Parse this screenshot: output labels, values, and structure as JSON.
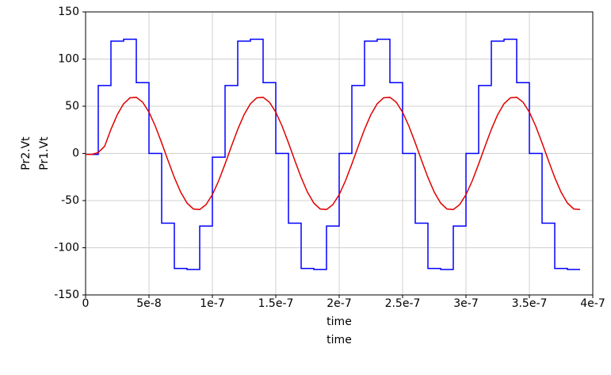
{
  "chart_data": {
    "type": "line",
    "xlim": [
      0,
      4e-07
    ],
    "xticks": [
      0,
      5e-08,
      1e-07,
      1.5e-07,
      2e-07,
      2.5e-07,
      3e-07,
      3.5e-07,
      4e-07
    ],
    "ylim": [
      -150,
      150
    ],
    "yticks": [
      -150,
      -100,
      -50,
      0,
      50,
      100,
      150
    ],
    "grid": true,
    "series": [
      {
        "name": "Pr1.Vt",
        "color": "#0000ff",
        "x_label": "time",
        "x": [
          0,
          1e-08,
          1e-08,
          2e-08,
          2e-08,
          3e-08,
          3e-08,
          4e-08,
          4e-08,
          5e-08,
          5e-08,
          6e-08,
          6e-08,
          7e-08,
          7e-08,
          8e-08,
          8e-08,
          9e-08,
          9e-08,
          1e-07,
          1e-07,
          1.1e-07,
          1.1e-07,
          1.2e-07,
          1.2e-07,
          1.3e-07,
          1.3e-07,
          1.4e-07,
          1.4e-07,
          1.5e-07,
          1.5e-07,
          1.6e-07,
          1.6e-07,
          1.7e-07,
          1.7e-07,
          1.8e-07,
          1.8e-07,
          1.9e-07,
          1.9e-07,
          2e-07,
          2e-07,
          2.1e-07,
          2.1e-07,
          2.2e-07,
          2.2e-07,
          2.3e-07,
          2.3e-07,
          2.4e-07,
          2.4e-07,
          2.5e-07,
          2.5e-07,
          2.6e-07,
          2.6e-07,
          2.7e-07,
          2.7e-07,
          2.8e-07,
          2.8e-07,
          2.9e-07,
          2.9e-07,
          3e-07,
          3e-07,
          3.1e-07,
          3.1e-07,
          3.2e-07,
          3.2e-07,
          3.3e-07,
          3.3e-07,
          3.4e-07,
          3.4e-07,
          3.5e-07,
          3.5e-07,
          3.6e-07,
          3.6e-07,
          3.7e-07,
          3.7e-07,
          3.8e-07,
          3.8e-07,
          3.9e-07
        ],
        "values": [
          -1,
          -1,
          72,
          72,
          119,
          119,
          121,
          121,
          75,
          75,
          0,
          0,
          -74,
          -74,
          -122,
          -122,
          -123,
          -123,
          -77,
          -77,
          -4,
          -4,
          72,
          72,
          119,
          119,
          121,
          121,
          75,
          75,
          0,
          0,
          -74,
          -74,
          -122,
          -122,
          -123,
          -123,
          -77,
          -77,
          0,
          0,
          72,
          72,
          119,
          119,
          121,
          121,
          75,
          75,
          0,
          0,
          -74,
          -74,
          -122,
          -122,
          -123,
          -123,
          -77,
          -77,
          0,
          0,
          72,
          72,
          119,
          119,
          121,
          121,
          75,
          75,
          0,
          0,
          -74,
          -74,
          -122,
          -122,
          -123,
          -123
        ]
      },
      {
        "name": "Pr2.Vt",
        "color": "#e00000",
        "x_label": "time",
        "x": [
          0,
          5e-09,
          1e-08,
          1.5e-08,
          2e-08,
          2.5e-08,
          3e-08,
          3.5e-08,
          4e-08,
          4.5e-08,
          5e-08,
          5.5e-08,
          6e-08,
          6.5e-08,
          7e-08,
          7.5e-08,
          8e-08,
          8.5e-08,
          9e-08,
          9.5e-08,
          1e-07,
          1.05e-07,
          1.1e-07,
          1.15e-07,
          1.2e-07,
          1.25e-07,
          1.3e-07,
          1.35e-07,
          1.4e-07,
          1.45e-07,
          1.5e-07,
          1.55e-07,
          1.6e-07,
          1.65e-07,
          1.7e-07,
          1.75e-07,
          1.8e-07,
          1.85e-07,
          1.9e-07,
          1.95e-07,
          2e-07,
          2.05e-07,
          2.1e-07,
          2.15e-07,
          2.2e-07,
          2.25e-07,
          2.3e-07,
          2.35e-07,
          2.4e-07,
          2.45e-07,
          2.5e-07,
          2.55e-07,
          2.6e-07,
          2.65e-07,
          2.7e-07,
          2.75e-07,
          2.8e-07,
          2.85e-07,
          2.9e-07,
          2.95e-07,
          3e-07,
          3.05e-07,
          3.1e-07,
          3.15e-07,
          3.2e-07,
          3.25e-07,
          3.3e-07,
          3.35e-07,
          3.4e-07,
          3.45e-07,
          3.5e-07,
          3.55e-07,
          3.6e-07,
          3.65e-07,
          3.7e-07,
          3.75e-07,
          3.8e-07,
          3.85e-07,
          3.9e-07
        ],
        "values": [
          -1,
          -1,
          1,
          7.5,
          25.5,
          41.1,
          52.6,
          58.9,
          59.5,
          54.3,
          43.7,
          28.9,
          11.2,
          -7.5,
          -25.5,
          -41.1,
          -52.6,
          -58.9,
          -59.5,
          -54.3,
          -43.7,
          -28.9,
          -11.2,
          7.5,
          25.5,
          41.1,
          52.6,
          58.9,
          59.5,
          54.3,
          43.7,
          28.9,
          11.2,
          -7.5,
          -25.5,
          -41.1,
          -52.6,
          -58.9,
          -59.5,
          -54.3,
          -43.7,
          -28.9,
          -11.2,
          7.5,
          25.5,
          41.1,
          52.6,
          58.9,
          59.5,
          54.3,
          43.7,
          28.9,
          11.2,
          -7.5,
          -25.5,
          -41.1,
          -52.6,
          -58.9,
          -59.5,
          -54.3,
          -43.7,
          -28.9,
          -11.2,
          7.5,
          25.5,
          41.1,
          52.6,
          58.9,
          59.5,
          54.3,
          43.7,
          28.9,
          11.2,
          -7.5,
          -25.5,
          -41.1,
          -52.6,
          -58.9,
          -59.5
        ]
      }
    ]
  }
}
